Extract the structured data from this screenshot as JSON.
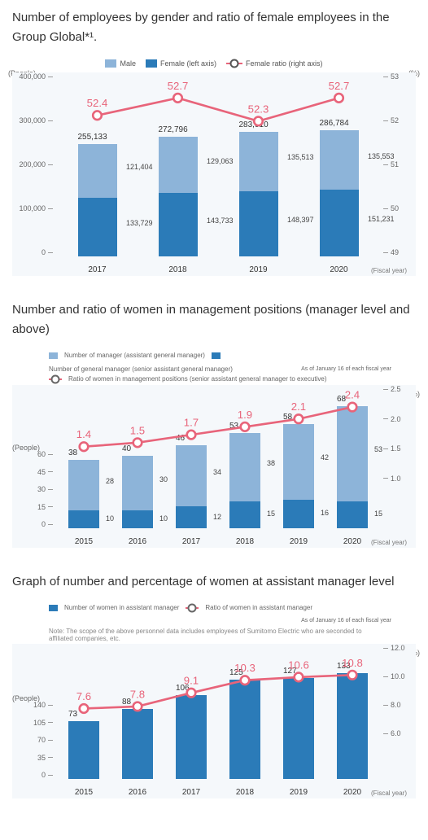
{
  "chart1": {
    "title": "Number of employees by gender and ratio of female employees in the Group Global*¹.",
    "legend": {
      "male": "Male",
      "female": "Female (left axis)",
      "ratio": "Female ratio (right axis)"
    },
    "colors": {
      "male": "#8db4d9",
      "female": "#2b7bb8",
      "ratio": "#e8647a",
      "bg": "#f5f8fb"
    },
    "yleft_label": "(People)",
    "yright_label": "(%)",
    "yleft_ticks": [
      "400,000",
      "300,000",
      "200,000",
      "100,000",
      "0"
    ],
    "yright_ticks": [
      "53",
      "52",
      "51",
      "50",
      "49"
    ],
    "yleft_max": 400000,
    "yright_min": 49,
    "yright_max": 53,
    "years": [
      "2017",
      "2018",
      "2019",
      "2020"
    ],
    "totals": [
      "255,133",
      "272,796",
      "283,910",
      "286,784"
    ],
    "male": [
      121404,
      129063,
      135513,
      135553
    ],
    "male_labels": [
      "121,404",
      "129,063",
      "135,513",
      "135,553"
    ],
    "female": [
      133729,
      143733,
      148397,
      151231
    ],
    "female_labels": [
      "133,729",
      "143,733",
      "148,397",
      "151,231"
    ],
    "ratio": [
      52.4,
      52.7,
      52.3,
      52.7
    ],
    "ratio_labels": [
      "52.4",
      "52.7",
      "52.3",
      "52.7"
    ],
    "fiscal": "(Fiscal year)"
  },
  "chart2": {
    "title": "Number and ratio of women in management positions (manager level and above)",
    "legend": {
      "mgr": "Number of manager (assistant general manager)",
      "gm": "Number of general manager (senior assistant general manager)",
      "ratio": "Ratio of women in management positions (senior assistant general manager to executive)"
    },
    "asof": "As of January 16 of each fiscal year",
    "colors": {
      "mgr": "#8db4d9",
      "gm": "#2b7bb8",
      "ratio": "#e8647a"
    },
    "yleft_label": "(People)",
    "yright_label": "(%)",
    "yleft_ticks": [
      "60",
      "45",
      "30",
      "15",
      "0"
    ],
    "yright_ticks": [
      "2.5",
      "2.0",
      "1.5",
      "1.0"
    ],
    "yleft_max": 75,
    "yright_min": 0.5,
    "yright_max": 2.75,
    "years": [
      "2015",
      "2016",
      "2017",
      "2018",
      "2019",
      "2020"
    ],
    "totals": [
      "38",
      "40",
      "46",
      "53",
      "58",
      "68"
    ],
    "mgr": [
      28,
      30,
      34,
      38,
      42,
      53
    ],
    "mgr_labels": [
      "28",
      "30",
      "34",
      "38",
      "42",
      "53"
    ],
    "gm": [
      10,
      10,
      12,
      15,
      16,
      15
    ],
    "gm_labels": [
      "10",
      "10",
      "12",
      "15",
      "16",
      "15"
    ],
    "ratio": [
      1.4,
      1.5,
      1.7,
      1.9,
      2.1,
      2.4
    ],
    "ratio_labels": [
      "1.4",
      "1.5",
      "1.7",
      "1.9",
      "2.1",
      "2.4"
    ],
    "fiscal": "(Fiscal year)"
  },
  "chart3": {
    "title": "Graph of number and percentage of women at assistant manager level",
    "legend": {
      "bar": "Number of women in assistant manager",
      "ratio": "Ratio of women in assistant manager"
    },
    "asof": "As of January 16 of each fiscal year",
    "note": "Note: The scope of the above personnel data includes employees of Sumitomo Electric who are seconded to affiliated companies, etc.",
    "colors": {
      "bar": "#2b7bb8",
      "ratio": "#e8647a"
    },
    "yleft_label": "(People)",
    "yright_label": "(%)",
    "yleft_ticks": [
      "140",
      "105",
      "70",
      "35",
      "0"
    ],
    "yright_ticks": [
      "12.0",
      "10.0",
      "8.0",
      "6.0"
    ],
    "yleft_max": 160,
    "yright_min": 5,
    "yright_max": 13,
    "years": [
      "2015",
      "2016",
      "2017",
      "2018",
      "2019",
      "2020"
    ],
    "vals": [
      73,
      88,
      106,
      125,
      127,
      133
    ],
    "val_labels": [
      "73",
      "88",
      "106",
      "125",
      "127",
      "133"
    ],
    "ratio": [
      7.6,
      7.8,
      9.1,
      10.3,
      10.6,
      10.8
    ],
    "ratio_labels": [
      "7.6",
      "7.8",
      "9.1",
      "10.3",
      "10.6",
      "10.8"
    ],
    "fiscal": "(Fiscal year)"
  }
}
